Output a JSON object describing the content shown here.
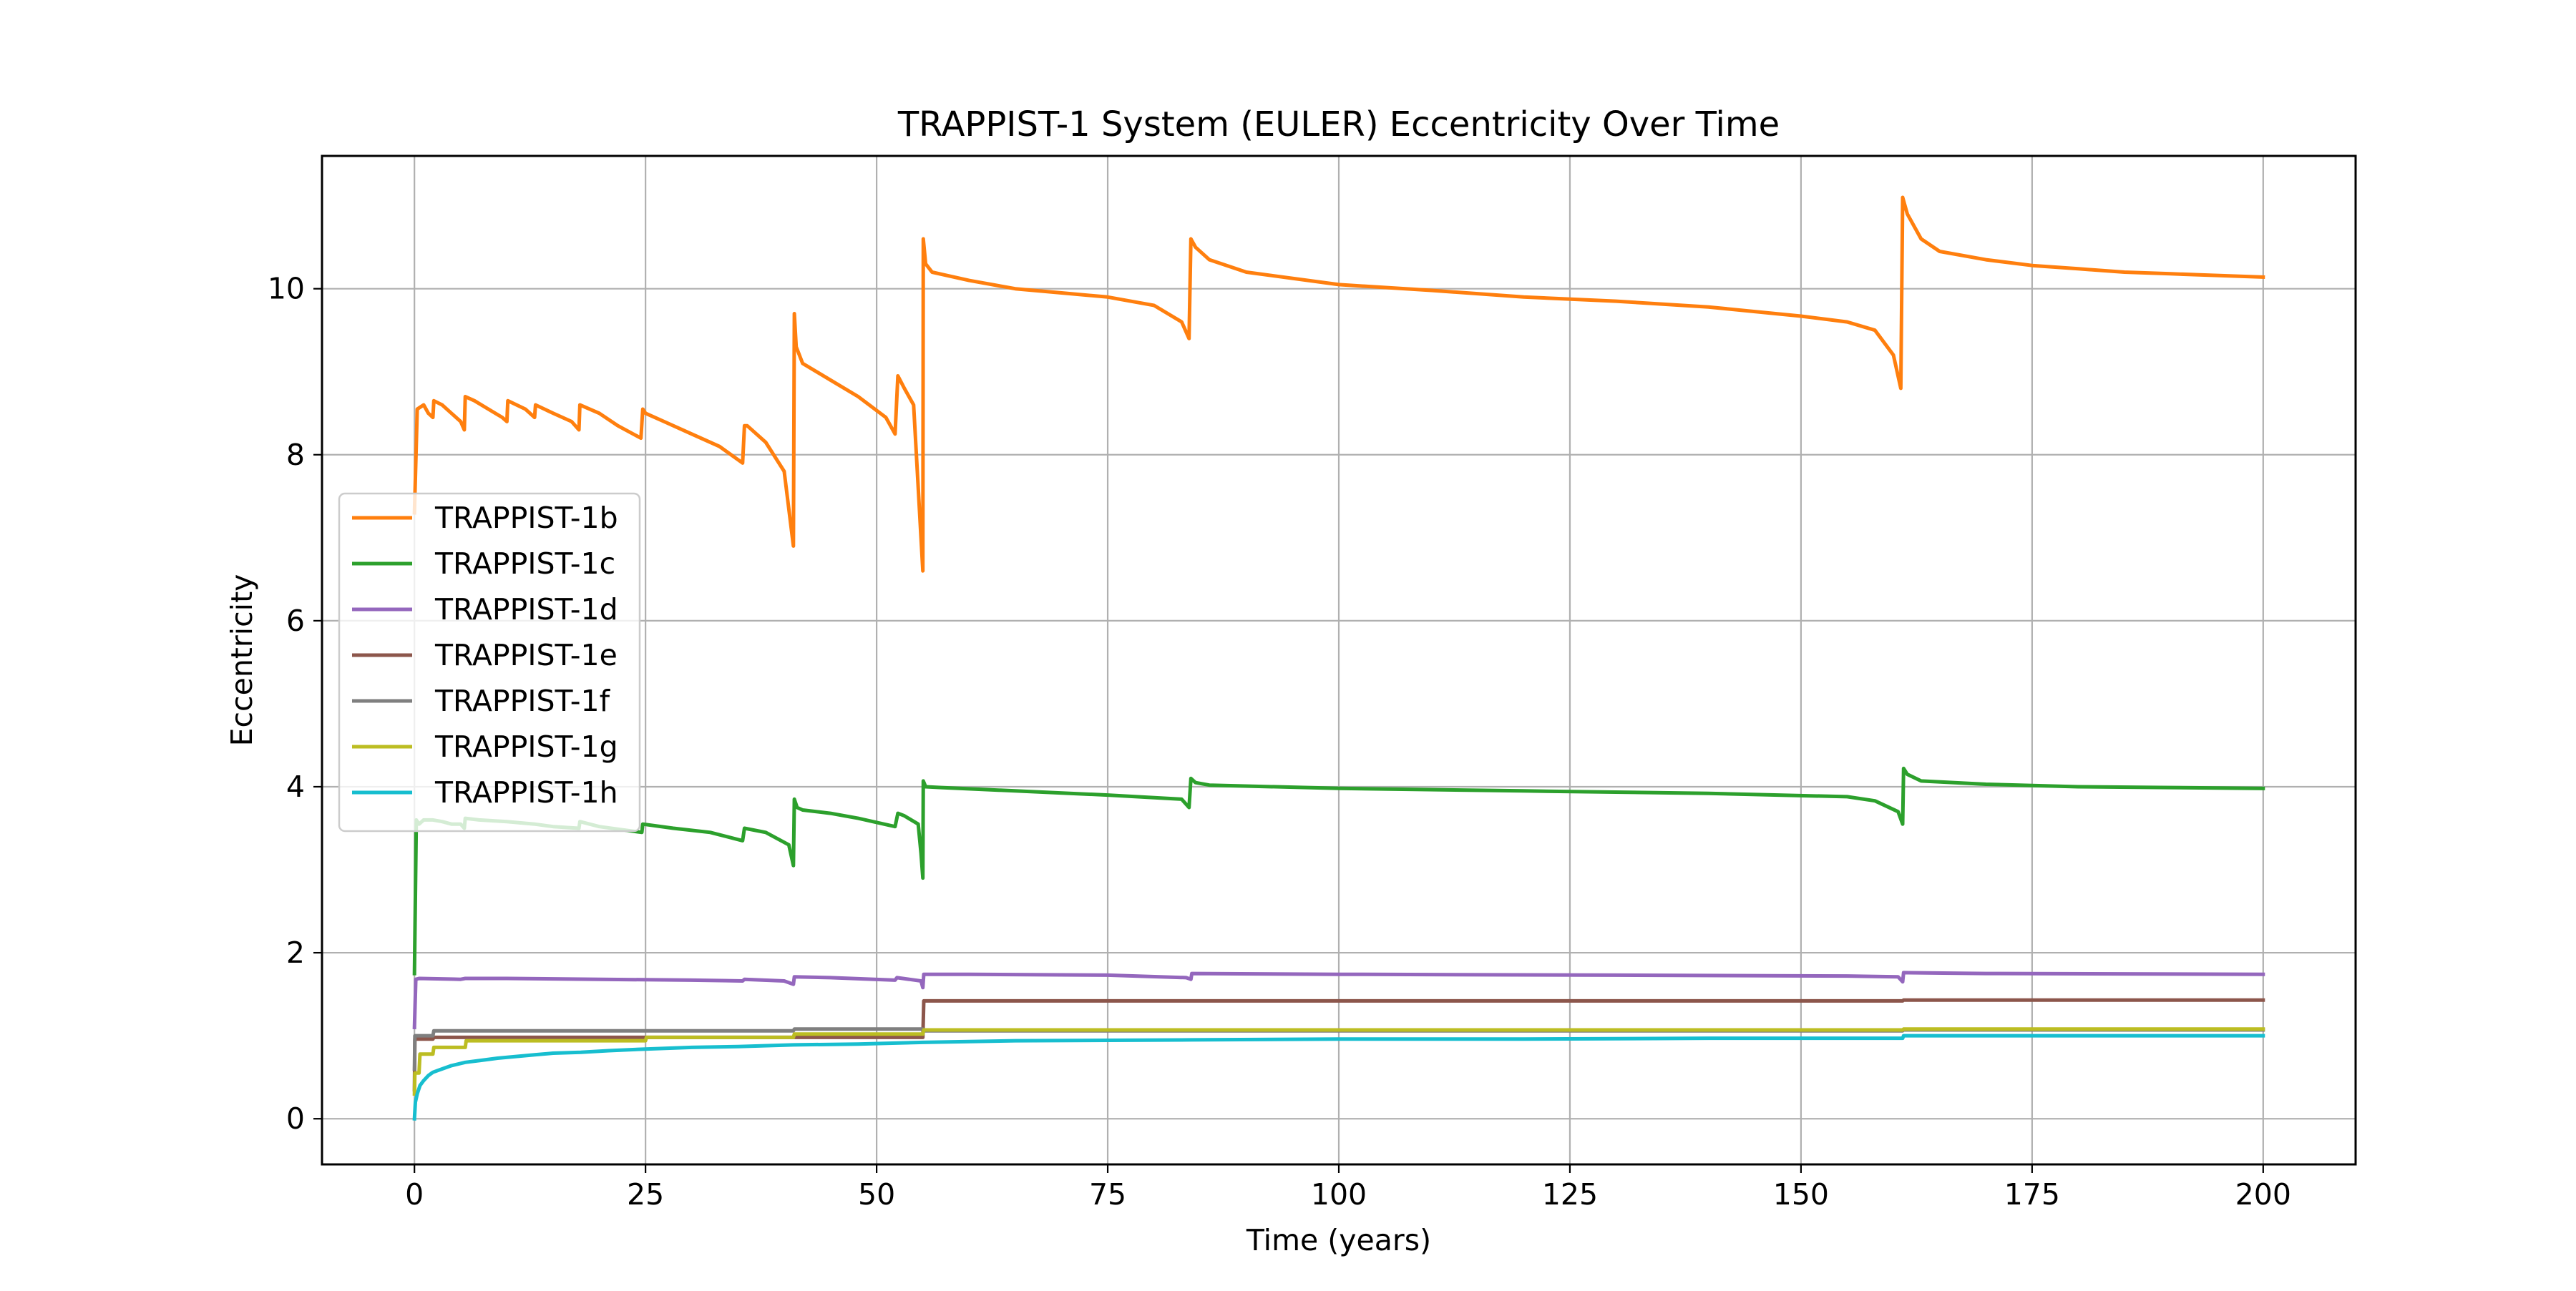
{
  "chart_data": {
    "type": "line",
    "title": "TRAPPIST-1 System (EULER) Eccentricity Over Time",
    "xlabel": "Time (years)",
    "ylabel": "Eccentricity",
    "xlim": [
      -10,
      210
    ],
    "ylim": [
      -0.55,
      11.6
    ],
    "xticks": [
      0,
      25,
      50,
      75,
      100,
      125,
      150,
      175,
      200
    ],
    "yticks": [
      0,
      2,
      4,
      6,
      8,
      10
    ],
    "grid": true,
    "legend_position": "center-left",
    "series": [
      {
        "name": "TRAPPIST-1b",
        "color": "#ff7f0e",
        "x": [
          0,
          0.3,
          1,
          1.5,
          2,
          2.1,
          3,
          4,
          5,
          5.4,
          5.5,
          6.5,
          8,
          9.5,
          10,
          10.1,
          12,
          13,
          13.1,
          15,
          17,
          17.8,
          17.9,
          20,
          22,
          24.5,
          24.7,
          25,
          27,
          30,
          33,
          35.5,
          35.7,
          36,
          38,
          40,
          41,
          41.1,
          41.3,
          42,
          45,
          48,
          51,
          52,
          52.3,
          53,
          54,
          54.8,
          55,
          55.05,
          55.3,
          56,
          60,
          65,
          70,
          75,
          80,
          83,
          83.8,
          84,
          84.5,
          86,
          90,
          100,
          110,
          120,
          130,
          140,
          150,
          155,
          158,
          160,
          160.8,
          161,
          161.5,
          163,
          165,
          170,
          175,
          180,
          185,
          190,
          195,
          200
        ],
        "y": [
          7.3,
          8.55,
          8.6,
          8.5,
          8.45,
          8.65,
          8.6,
          8.5,
          8.4,
          8.3,
          8.7,
          8.65,
          8.55,
          8.45,
          8.4,
          8.65,
          8.55,
          8.45,
          8.6,
          8.5,
          8.4,
          8.3,
          8.6,
          8.5,
          8.35,
          8.2,
          8.55,
          8.5,
          8.4,
          8.25,
          8.1,
          7.9,
          8.35,
          8.35,
          8.15,
          7.8,
          6.9,
          9.7,
          9.3,
          9.1,
          8.9,
          8.7,
          8.45,
          8.25,
          8.95,
          8.8,
          8.6,
          7.0,
          6.6,
          10.6,
          10.3,
          10.2,
          10.1,
          10.0,
          9.95,
          9.9,
          9.8,
          9.6,
          9.4,
          10.6,
          10.5,
          10.35,
          10.2,
          10.05,
          9.98,
          9.9,
          9.85,
          9.78,
          9.67,
          9.6,
          9.5,
          9.2,
          8.8,
          11.1,
          10.9,
          10.6,
          10.45,
          10.35,
          10.28,
          10.24,
          10.2,
          10.18,
          10.16,
          10.14
        ]
      },
      {
        "name": "TRAPPIST-1c",
        "color": "#2ca02c",
        "x": [
          0,
          0.2,
          0.5,
          1,
          2,
          3,
          4,
          5,
          5.4,
          5.5,
          7,
          10,
          13,
          15,
          17.8,
          17.9,
          20,
          24.6,
          24.7,
          28,
          32,
          35.5,
          35.7,
          38,
          40.5,
          41,
          41.1,
          41.4,
          42,
          45,
          48,
          52,
          52.3,
          53,
          54.5,
          54.8,
          55,
          55.05,
          55.3,
          57,
          65,
          75,
          83,
          83.8,
          84,
          84.5,
          86,
          100,
          120,
          140,
          155,
          158,
          160.5,
          161,
          161.1,
          161.5,
          163,
          170,
          180,
          190,
          200
        ],
        "y": [
          1.75,
          3.6,
          3.55,
          3.6,
          3.6,
          3.58,
          3.55,
          3.55,
          3.5,
          3.62,
          3.6,
          3.58,
          3.55,
          3.52,
          3.5,
          3.58,
          3.52,
          3.45,
          3.55,
          3.5,
          3.45,
          3.35,
          3.5,
          3.45,
          3.3,
          3.05,
          3.85,
          3.75,
          3.72,
          3.68,
          3.62,
          3.52,
          3.68,
          3.65,
          3.55,
          3.2,
          2.9,
          4.07,
          4.0,
          3.99,
          3.95,
          3.9,
          3.85,
          3.75,
          4.1,
          4.05,
          4.02,
          3.98,
          3.95,
          3.92,
          3.88,
          3.83,
          3.7,
          3.55,
          4.22,
          4.15,
          4.07,
          4.03,
          4.0,
          3.99,
          3.98
        ]
      },
      {
        "name": "TRAPPIST-1d",
        "color": "#9467bd",
        "x": [
          0,
          0.15,
          0.5,
          5,
          5.5,
          10,
          20,
          30,
          35.5,
          35.7,
          40,
          41,
          41.1,
          45,
          52,
          52.2,
          54.8,
          55,
          55.1,
          60,
          75,
          83.5,
          84,
          84.1,
          100,
          130,
          155,
          160.5,
          161,
          161.1,
          170,
          200
        ],
        "y": [
          1.1,
          1.68,
          1.69,
          1.68,
          1.69,
          1.69,
          1.68,
          1.67,
          1.66,
          1.68,
          1.66,
          1.62,
          1.71,
          1.7,
          1.67,
          1.7,
          1.66,
          1.58,
          1.74,
          1.74,
          1.73,
          1.7,
          1.68,
          1.75,
          1.74,
          1.73,
          1.72,
          1.71,
          1.65,
          1.76,
          1.75,
          1.74
        ]
      },
      {
        "name": "TRAPPIST-1e",
        "color": "#8c564b",
        "x": [
          0,
          0.05,
          2,
          2.1,
          55,
          55.1,
          161,
          161.1,
          200
        ],
        "y": [
          0.35,
          0.96,
          0.96,
          0.98,
          0.98,
          1.42,
          1.42,
          1.43,
          1.43
        ]
      },
      {
        "name": "TRAPPIST-1f",
        "color": "#7f7f7f",
        "x": [
          0,
          0.05,
          2,
          2.1,
          41,
          41.1,
          55,
          55.1,
          161,
          161.1,
          200
        ],
        "y": [
          0.6,
          1.0,
          1.0,
          1.06,
          1.06,
          1.08,
          1.08,
          1.06,
          1.06,
          1.07,
          1.07
        ]
      },
      {
        "name": "TRAPPIST-1g",
        "color": "#bcbd22",
        "x": [
          0,
          0.05,
          0.5,
          0.6,
          2,
          2.1,
          5.5,
          5.6,
          25,
          25.1,
          41,
          41.1,
          55,
          55.1,
          84,
          84.1,
          161,
          161.1,
          200
        ],
        "y": [
          0.3,
          0.55,
          0.55,
          0.78,
          0.78,
          0.86,
          0.86,
          0.94,
          0.94,
          0.98,
          0.98,
          1.02,
          1.02,
          1.07,
          1.07,
          1.07,
          1.07,
          1.08,
          1.08
        ]
      },
      {
        "name": "TRAPPIST-1h",
        "color": "#17becf",
        "x": [
          0,
          0.1,
          0.3,
          0.6,
          1,
          1.5,
          2,
          3,
          4,
          5.5,
          7,
          9,
          11,
          13,
          15,
          18,
          21,
          25,
          30,
          35,
          41,
          48,
          55,
          65,
          84,
          100,
          120,
          140,
          161,
          161.1,
          180,
          200
        ],
        "y": [
          0.0,
          0.2,
          0.3,
          0.4,
          0.46,
          0.52,
          0.56,
          0.6,
          0.64,
          0.68,
          0.7,
          0.73,
          0.75,
          0.77,
          0.79,
          0.8,
          0.82,
          0.84,
          0.86,
          0.87,
          0.89,
          0.9,
          0.92,
          0.94,
          0.95,
          0.96,
          0.96,
          0.97,
          0.97,
          1.0,
          1.0,
          1.0
        ]
      }
    ]
  }
}
